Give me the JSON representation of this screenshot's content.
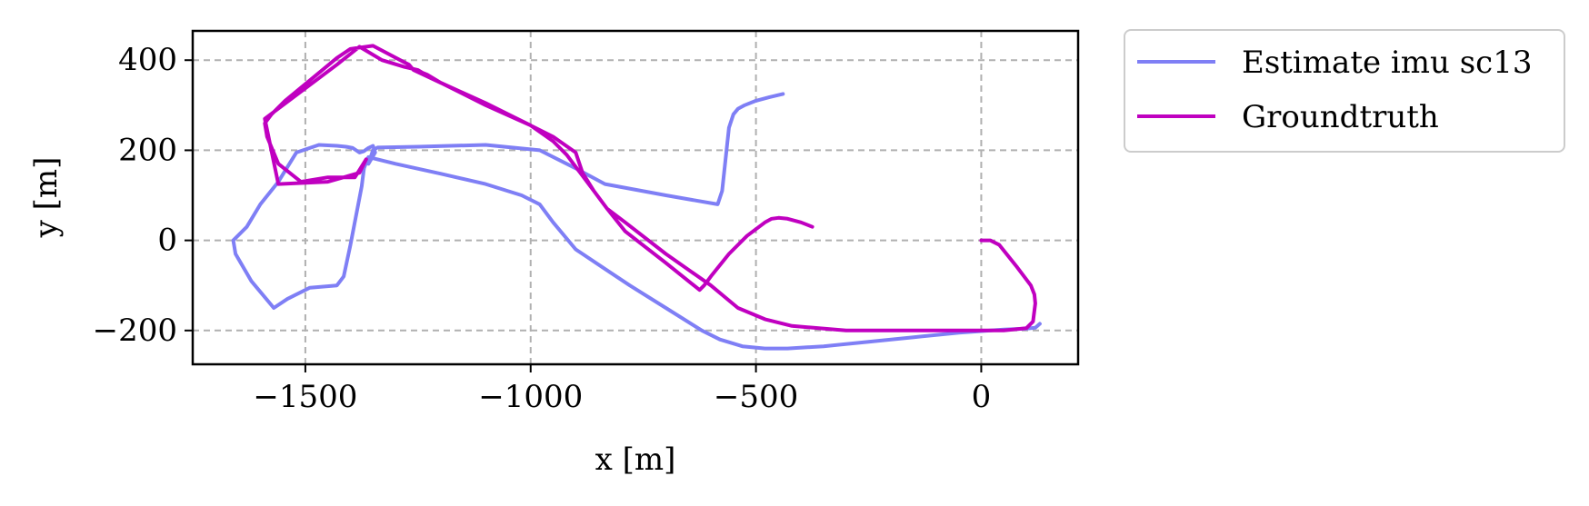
{
  "chart_data": {
    "type": "line",
    "title": "",
    "xlabel": "x [m]",
    "ylabel": "y [m]",
    "xlim": [
      -1750,
      215
    ],
    "ylim": [
      -275,
      465
    ],
    "grid": true,
    "legend_position": "outside-top-right",
    "xticks": [
      {
        "value": -1500,
        "label": "−1500"
      },
      {
        "value": -1000,
        "label": "−1000"
      },
      {
        "value": -500,
        "label": "−500"
      },
      {
        "value": 0,
        "label": "0"
      }
    ],
    "yticks": [
      {
        "value": 400,
        "label": "400"
      },
      {
        "value": 200,
        "label": "200"
      },
      {
        "value": 0,
        "label": "0"
      },
      {
        "value": -200,
        "label": "−200"
      }
    ],
    "series": [
      {
        "name": "Estimate imu sc13",
        "color": "#7f7ff5",
        "x": [
          -440,
          -470,
          -500,
          -525,
          -540,
          -550,
          -560,
          -575,
          -585,
          -700,
          -835,
          -900,
          -980,
          -1100,
          -1250,
          -1340,
          -1350,
          -1360,
          -1345,
          -1350,
          -1360,
          -1370,
          -1380,
          -1395,
          -1410,
          -1430,
          -1470,
          -1520,
          -1560,
          -1600,
          -1630,
          -1660,
          -1655,
          -1620,
          -1570,
          -1540,
          -1490,
          -1430,
          -1415,
          -1400,
          -1375,
          -1370,
          -1360,
          -1300,
          -1200,
          -1100,
          -1020,
          -980,
          -950,
          -900,
          -840,
          -780,
          -700,
          -620,
          -580,
          -530,
          -480,
          -430,
          -350,
          -250,
          -150,
          -50,
          50,
          100,
          120,
          130
        ],
        "y": [
          325,
          318,
          310,
          300,
          292,
          280,
          250,
          110,
          80,
          100,
          125,
          160,
          200,
          212,
          208,
          206,
          200,
          170,
          195,
          210,
          205,
          198,
          195,
          205,
          208,
          210,
          212,
          195,
          130,
          80,
          30,
          0,
          -30,
          -90,
          -150,
          -130,
          -105,
          -100,
          -80,
          -10,
          120,
          160,
          185,
          170,
          148,
          125,
          100,
          80,
          40,
          -20,
          -60,
          -100,
          -150,
          -200,
          -220,
          -235,
          -240,
          -240,
          -235,
          -225,
          -215,
          -205,
          -198,
          -196,
          -194,
          -185
        ]
      },
      {
        "name": "Groundtruth",
        "color": "#c000c0",
        "x": [
          -375,
          -400,
          -430,
          -450,
          -465,
          -480,
          -520,
          -560,
          -600,
          -615,
          -625,
          -700,
          -790,
          -830,
          -860,
          -890,
          -920,
          -950,
          -1000,
          -1100,
          -1200,
          -1260,
          -1270,
          -1280,
          -1350,
          -1400,
          -1430,
          -1460,
          -1545,
          -1575,
          -1590,
          -1585,
          -1560,
          -1510,
          -1450,
          -1390,
          -1365,
          -1380,
          -1450,
          -1560,
          -1590,
          -1430,
          -1380,
          -1330,
          -1280,
          -1250,
          -1240,
          -1230,
          -1200,
          -1100,
          -1000,
          -950,
          -900,
          -885,
          -860,
          -830,
          -790,
          -700,
          -600,
          -540,
          -480,
          -420,
          -300,
          -200,
          -100,
          0,
          50,
          100,
          115,
          120,
          118,
          110,
          80,
          40,
          20,
          0
        ],
        "y": [
          30,
          40,
          48,
          50,
          48,
          40,
          10,
          -30,
          -80,
          -100,
          -110,
          -50,
          20,
          70,
          110,
          150,
          190,
          220,
          255,
          305,
          350,
          378,
          390,
          395,
          432,
          425,
          405,
          380,
          310,
          280,
          260,
          230,
          170,
          130,
          140,
          140,
          180,
          150,
          130,
          125,
          270,
          390,
          430,
          400,
          385,
          378,
          372,
          368,
          350,
          300,
          255,
          230,
          195,
          150,
          110,
          70,
          40,
          -30,
          -100,
          -150,
          -175,
          -190,
          -200,
          -200,
          -200,
          -200,
          -200,
          -195,
          -180,
          -140,
          -120,
          -100,
          -60,
          -10,
          0,
          0
        ]
      }
    ]
  }
}
